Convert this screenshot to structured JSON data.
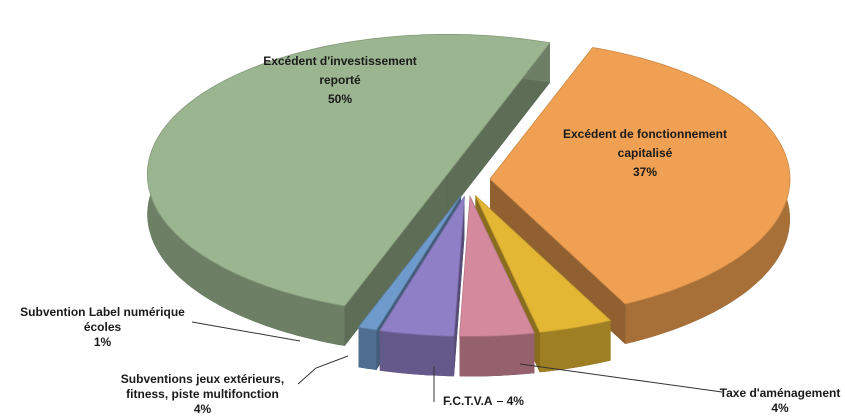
{
  "chart_data": {
    "type": "pie3d",
    "categories": [
      "Excédent de fonctionnement capitalisé",
      "Taxe d'aménagement",
      "F.C.T.V.A",
      "Subventions jeux extérieurs, fitness, piste multifonction",
      "Subvention Label numérique écoles",
      "Excédent d'investissement reporté"
    ],
    "values": [
      37,
      4,
      4,
      4,
      1,
      50
    ],
    "value_labels": [
      "37%",
      "4%",
      "4%",
      "4%",
      "1%",
      "50%"
    ],
    "colors": [
      "#f0a052",
      "#e3b634",
      "#d48a9c",
      "#8f7fc6",
      "#6f9bcc",
      "#9bb590"
    ]
  }
}
